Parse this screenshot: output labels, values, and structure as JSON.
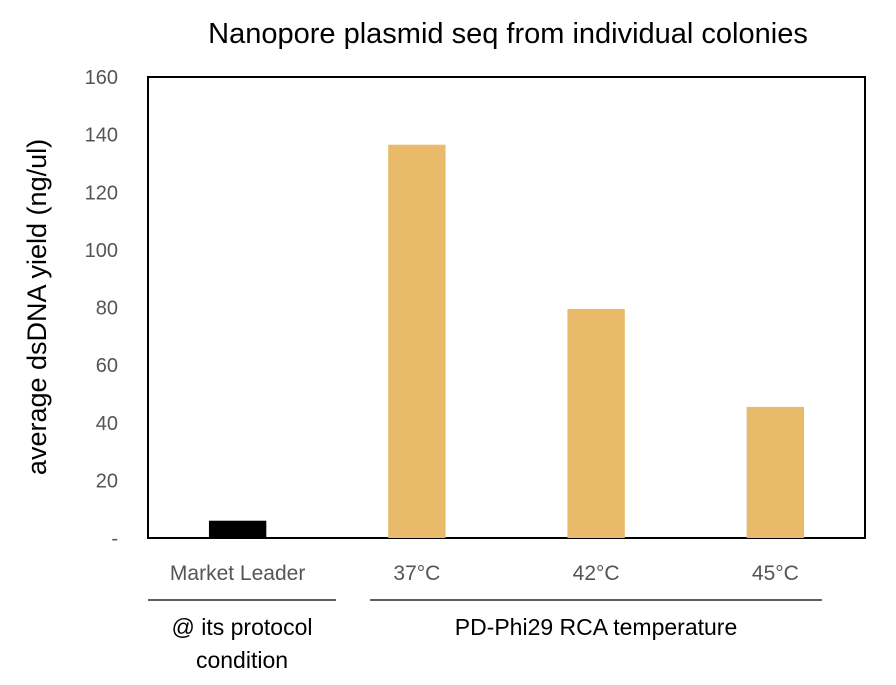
{
  "chart_data": {
    "type": "bar",
    "title": "Nanopore plasmid seq from individual colonies",
    "xlabel": "",
    "ylabel": "average dsDNA yield (ng/ul)",
    "categories": [
      "Market Leader",
      "37°C",
      "42°C",
      "45°C"
    ],
    "values": [
      6,
      136.5,
      79.5,
      45.5
    ],
    "bar_colors": [
      "#000000",
      "#e8ba6a",
      "#e8ba6a",
      "#e8ba6a"
    ],
    "ylim": [
      0,
      160
    ],
    "yticks": [
      0,
      20,
      40,
      60,
      80,
      100,
      120,
      140,
      160
    ],
    "ytick_labels": [
      "-",
      "20",
      "40",
      "60",
      "80",
      "100",
      "120",
      "140",
      "160"
    ],
    "grid": false,
    "groups": [
      {
        "label_lines": [
          "@ its protocol",
          "condition"
        ],
        "categories": [
          "Market Leader"
        ]
      },
      {
        "label_lines": [
          "PD-Phi29 RCA temperature"
        ],
        "categories": [
          "37°C",
          "42°C",
          "45°C"
        ]
      }
    ]
  }
}
